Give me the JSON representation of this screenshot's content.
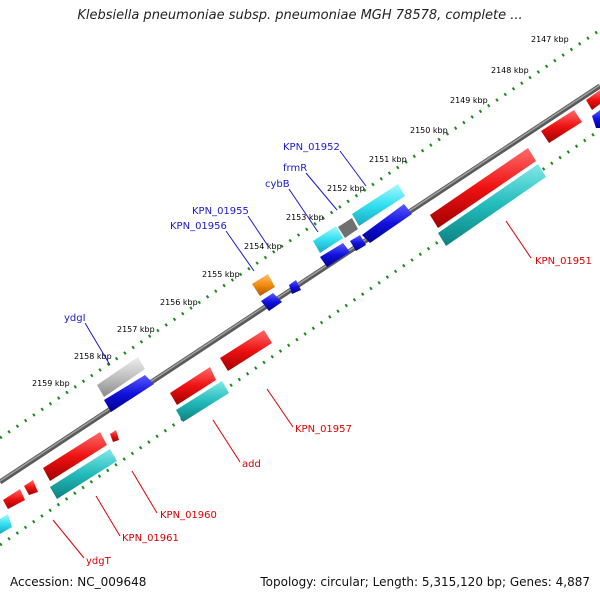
{
  "title": "Klebsiella pneumoniae subsp. pneumoniae MGH 78578, complete ...",
  "footer": {
    "accession": "Accession: NC_009648",
    "summary": "Topology: circular; Length: 5,315,120 bp; Genes: 4,887"
  },
  "kbp_ticks": [
    "2147 kbp",
    "2148 kbp",
    "2149 kbp",
    "2150 kbp",
    "2151 kbp",
    "2152 kbp",
    "2153 kbp",
    "2154 kbp",
    "2155 kbp",
    "2156 kbp",
    "2157 kbp",
    "2158 kbp",
    "2159 kbp"
  ],
  "gene_labels": {
    "KPN_01952": "KPN_01952",
    "frmR": "frmR",
    "cybB": "cybB",
    "KPN_01955": "KPN_01955",
    "KPN_01956": "KPN_01956",
    "ydgI": "ydgI",
    "KPN_01951": "KPN_01951",
    "KPN_01957": "KPN_01957",
    "add": "add",
    "KPN_01960": "KPN_01960",
    "KPN_01961": "KPN_01961",
    "ydgT": "ydgT"
  },
  "colors": {
    "backbone": "#808080",
    "tick_green": "#1a8a1a",
    "label_blue": "#1a1acc",
    "label_red": "#dd0000",
    "gene_red": "#ee1111",
    "gene_blue": "#1111dd",
    "gene_cyan": "#33e0f0",
    "gene_teal": "#22bbbb",
    "gene_gray": "#c0c0c0",
    "gene_orange": "#f08c10"
  }
}
